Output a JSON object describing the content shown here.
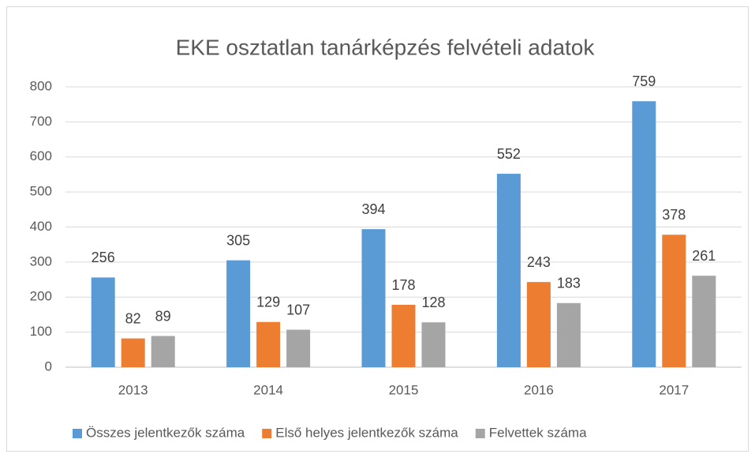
{
  "chart_data": {
    "type": "bar",
    "title": "EKE osztatlan tanárképzés felvételi adatok",
    "categories": [
      "2013",
      "2014",
      "2015",
      "2016",
      "2017"
    ],
    "series": [
      {
        "name": "Összes jelentkezők száma",
        "color": "#5b9bd5",
        "values": [
          256,
          305,
          394,
          552,
          759
        ]
      },
      {
        "name": "Első helyes jelentkezők száma",
        "color": "#ed7d31",
        "values": [
          82,
          129,
          178,
          243,
          378
        ]
      },
      {
        "name": "Felvettek száma",
        "color": "#a5a5a5",
        "values": [
          89,
          107,
          128,
          183,
          261
        ]
      }
    ],
    "ylim": [
      0,
      800
    ],
    "yticks": [
      0,
      100,
      200,
      300,
      400,
      500,
      600,
      700,
      800
    ],
    "grid": true,
    "legend": "bottom",
    "data_labels": true
  }
}
